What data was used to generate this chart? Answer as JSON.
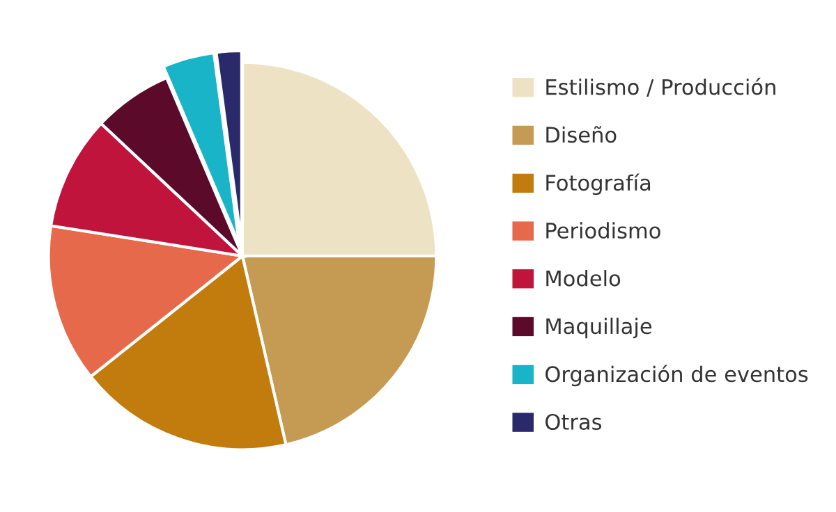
{
  "chart_data": {
    "type": "pie",
    "categories": [
      "Estilismo / Producción",
      "Diseño",
      "Fotografía",
      "Periodismo",
      "Modelo",
      "Maquillaje",
      "Organización de eventos",
      "Otras"
    ],
    "values": [
      25,
      21.4,
      17.9,
      13.2,
      9.5,
      6.6,
      4.3,
      2.1
    ],
    "colors": [
      "#ede3c4",
      "#c59a52",
      "#c27c0e",
      "#e5694a",
      "#c0143c",
      "#5c0a2a",
      "#1ab4c8",
      "#2a2a6a"
    ],
    "legend": "right"
  }
}
